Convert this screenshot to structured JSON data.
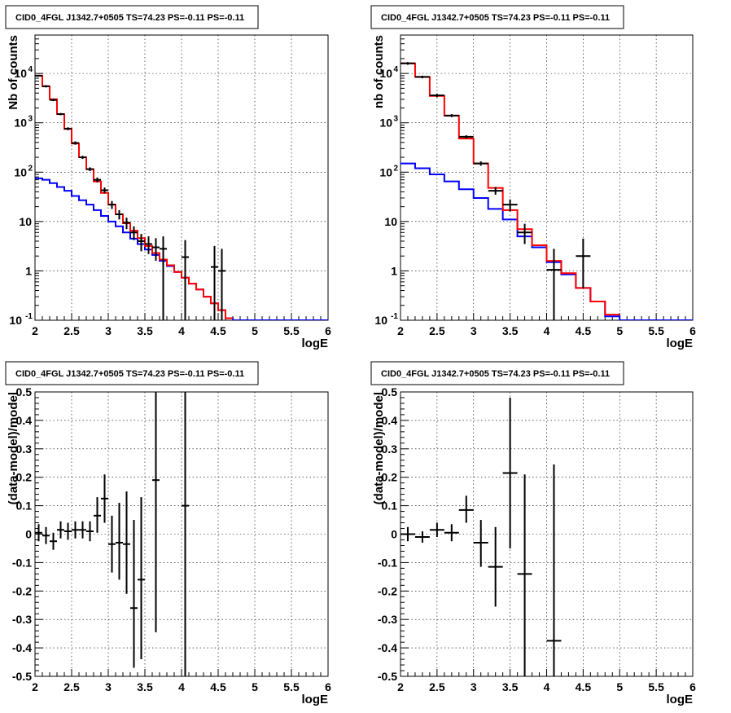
{
  "chart_data": [
    {
      "type": "line",
      "title": "CID0_4FGL J1342.7+0505 TS=74.23 PS=-0.11 PS=-0.11",
      "xlabel": "logE",
      "ylabel": "Nb of counts",
      "xlim": [
        2,
        6
      ],
      "ylim": [
        0.1,
        60000
      ],
      "yscale": "log",
      "grid": true,
      "xticks": [
        "2",
        "2.5",
        "3",
        "3.5",
        "4",
        "4.5",
        "5",
        "5.5",
        "6"
      ],
      "yticks": [
        {
          "v": 0.1,
          "label": "10",
          "sup": "-1"
        },
        {
          "v": 1,
          "label": "1",
          "sup": ""
        },
        {
          "v": 10,
          "label": "10",
          "sup": ""
        },
        {
          "v": 100,
          "label": "10",
          "sup": "2"
        },
        {
          "v": 1000,
          "label": "10",
          "sup": "3"
        },
        {
          "v": 10000,
          "label": "10",
          "sup": "4"
        }
      ],
      "step_width": 0.1,
      "series": [
        {
          "name": "",
          "color": "#0000ff",
          "style": "step",
          "x0": [
            2.0,
            2.1,
            2.2,
            2.3,
            2.4,
            2.5,
            2.6,
            2.7,
            2.8,
            2.9,
            3.0,
            3.1,
            3.2,
            3.3,
            3.4,
            3.5,
            3.6,
            3.7,
            3.8,
            3.9,
            4.0,
            4.1,
            4.2,
            4.3,
            4.4,
            4.5,
            4.6,
            4.7,
            4.8,
            4.9,
            5.0,
            5.1,
            5.2,
            5.3,
            5.4,
            5.5,
            5.6,
            5.7,
            5.8,
            5.9
          ],
          "values": [
            75,
            70,
            60,
            50,
            42,
            33,
            27,
            22,
            17,
            13,
            10,
            8,
            6,
            4.5,
            3.5,
            2.7,
            2.1,
            1.6,
            1.25,
            0.95,
            0.73,
            0.55,
            0.42,
            0.3,
            0.22,
            0.16,
            0.11,
            0.1,
            0.1,
            0.1,
            0.1,
            0.1,
            0.1,
            0.1,
            0.1,
            0.1,
            0.1,
            0.1,
            0.1,
            0.1
          ]
        },
        {
          "name": "",
          "color": "#ff0000",
          "style": "step",
          "x0": [
            2.0,
            2.1,
            2.2,
            2.3,
            2.4,
            2.5,
            2.6,
            2.7,
            2.8,
            2.9,
            3.0,
            3.1,
            3.2,
            3.3,
            3.4,
            3.5,
            3.6,
            3.7,
            3.8,
            3.9,
            4.0,
            4.1,
            4.2,
            4.3,
            4.4,
            4.5,
            4.6
          ],
          "values": [
            9000,
            5500,
            3000,
            1500,
            750,
            380,
            200,
            115,
            65,
            38,
            22,
            14,
            9.2,
            6.5,
            4.6,
            3.2,
            2.3,
            1.7,
            1.3,
            0.95,
            0.73,
            0.55,
            0.42,
            0.3,
            0.22,
            0.16,
            0.11
          ]
        }
      ],
      "points": {
        "color": "#000000",
        "x": [
          2.05,
          2.15,
          2.25,
          2.35,
          2.45,
          2.55,
          2.65,
          2.75,
          2.85,
          2.95,
          3.05,
          3.15,
          3.25,
          3.35,
          3.45,
          3.55,
          3.65,
          3.75,
          4.05,
          4.45,
          4.55
        ],
        "y": [
          9000,
          5500,
          2900,
          1500,
          760,
          390,
          200,
          115,
          70,
          43,
          22,
          14,
          9.5,
          6,
          4,
          3.5,
          3,
          2.8,
          1.9,
          1.2,
          1
        ],
        "ylow": [
          8600,
          5200,
          2750,
          1420,
          710,
          360,
          185,
          105,
          62,
          37,
          18,
          11,
          7,
          4.2,
          2.5,
          2.2,
          1.6,
          0.1,
          0.1,
          0.1,
          0.1
        ],
        "yhigh": [
          9400,
          5800,
          3050,
          1580,
          810,
          420,
          215,
          125,
          78,
          49,
          26,
          17,
          12,
          8,
          5.6,
          5,
          4.6,
          5,
          4.2,
          3.2,
          2.8
        ]
      }
    },
    {
      "type": "line",
      "title": "CID0_4FGL J1342.7+0505 TS=74.23 PS=-0.11 PS=-0.11",
      "xlabel": "logE",
      "ylabel": "nb of counts",
      "xlim": [
        2,
        6
      ],
      "ylim": [
        0.1,
        60000
      ],
      "yscale": "log",
      "grid": true,
      "xticks": [
        "2",
        "2.5",
        "3",
        "3.5",
        "4",
        "4.5",
        "5",
        "5.5",
        "6"
      ],
      "yticks": [
        {
          "v": 0.1,
          "label": "10",
          "sup": "-1"
        },
        {
          "v": 1,
          "label": "1",
          "sup": ""
        },
        {
          "v": 10,
          "label": "10",
          "sup": ""
        },
        {
          "v": 100,
          "label": "10",
          "sup": "2"
        },
        {
          "v": 1000,
          "label": "10",
          "sup": "3"
        },
        {
          "v": 10000,
          "label": "10",
          "sup": "4"
        }
      ],
      "step_width": 0.2,
      "series": [
        {
          "name": "",
          "color": "#0000ff",
          "style": "step",
          "x0": [
            2.0,
            2.2,
            2.4,
            2.6,
            2.8,
            3.0,
            3.2,
            3.4,
            3.6,
            3.8,
            4.0,
            4.2,
            4.4,
            4.6,
            4.8,
            5.0,
            5.2,
            5.4,
            5.6,
            5.8
          ],
          "values": [
            150,
            120,
            90,
            65,
            45,
            30,
            18,
            11,
            5,
            3,
            1.5,
            0.85,
            0.45,
            0.24,
            0.12,
            0.1,
            0.1,
            0.1,
            0.1,
            0.1
          ]
        },
        {
          "name": "",
          "color": "#ff0000",
          "style": "step",
          "x0": [
            2.0,
            2.2,
            2.4,
            2.6,
            2.8,
            3.0,
            3.2,
            3.4,
            3.6,
            3.8,
            4.0,
            4.2,
            4.4,
            4.6,
            4.8
          ],
          "values": [
            16000,
            8500,
            3500,
            1400,
            480,
            150,
            48,
            17,
            7,
            3.3,
            1.6,
            0.9,
            0.45,
            0.24,
            0.13
          ]
        }
      ],
      "points": {
        "color": "#000000",
        "x": [
          2.1,
          2.3,
          2.5,
          2.7,
          2.9,
          3.1,
          3.3,
          3.5,
          3.7,
          4.1,
          4.5
        ],
        "y": [
          16000,
          8500,
          3600,
          1400,
          520,
          150,
          42,
          22,
          6,
          1.05,
          2
        ],
        "ylow": [
          15000,
          8000,
          3300,
          1300,
          480,
          135,
          35,
          16,
          3.5,
          0.1,
          0.45
        ],
        "yhigh": [
          17000,
          9000,
          3900,
          1500,
          560,
          165,
          50,
          28,
          9,
          2.8,
          4.5
        ]
      }
    },
    {
      "type": "scatter",
      "title": "CID0_4FGL J1342.7+0505 TS=74.23 PS=-0.11 PS=-0.11",
      "xlabel": "logE",
      "ylabel": "(data-model)/model",
      "xlim": [
        2,
        6
      ],
      "ylim": [
        -0.5,
        0.5
      ],
      "yscale": "linear",
      "grid": true,
      "xticks": [
        "2",
        "2.5",
        "3",
        "3.5",
        "4",
        "4.5",
        "5",
        "5.5",
        "6"
      ],
      "yticks": [
        {
          "v": -0.5,
          "label": "-0.5",
          "sup": ""
        },
        {
          "v": -0.4,
          "label": "-0.4",
          "sup": ""
        },
        {
          "v": -0.3,
          "label": "-0.3",
          "sup": ""
        },
        {
          "v": -0.2,
          "label": "-0.2",
          "sup": ""
        },
        {
          "v": -0.1,
          "label": "-0.1",
          "sup": ""
        },
        {
          "v": 0,
          "label": "0",
          "sup": ""
        },
        {
          "v": 0.1,
          "label": "0.1",
          "sup": ""
        },
        {
          "v": 0.2,
          "label": "0.2",
          "sup": ""
        },
        {
          "v": 0.3,
          "label": "0.3",
          "sup": ""
        },
        {
          "v": 0.4,
          "label": "0.4",
          "sup": ""
        },
        {
          "v": 0.5,
          "label": "0.5",
          "sup": ""
        }
      ],
      "xerr": 0.05,
      "series": [],
      "points": {
        "color": "#000000",
        "x": [
          2.05,
          2.15,
          2.25,
          2.35,
          2.45,
          2.55,
          2.65,
          2.75,
          2.85,
          2.95,
          3.05,
          3.15,
          3.25,
          3.35,
          3.45,
          3.65,
          4.05
        ],
        "y": [
          0.005,
          -0.005,
          -0.025,
          0.015,
          0.01,
          0.015,
          0.015,
          0.01,
          0.065,
          0.125,
          -0.035,
          -0.03,
          -0.035,
          -0.26,
          -0.16,
          0.19,
          0.1
        ],
        "ylow": [
          -0.025,
          -0.035,
          -0.055,
          -0.015,
          -0.02,
          -0.015,
          -0.015,
          -0.025,
          0.005,
          0.04,
          -0.135,
          -0.16,
          -0.21,
          -0.47,
          -0.44,
          -0.345,
          -0.5
        ],
        "yhigh": [
          0.035,
          0.025,
          0.005,
          0.045,
          0.04,
          0.045,
          0.045,
          0.045,
          0.13,
          0.21,
          0.065,
          0.11,
          0.15,
          0.05,
          0.13,
          0.5,
          0.5
        ]
      }
    },
    {
      "type": "scatter",
      "title": "CID0_4FGL J1342.7+0505 TS=74.23 PS=-0.11 PS=-0.11",
      "xlabel": "logE",
      "ylabel": "(data-model)/model",
      "xlim": [
        2,
        6
      ],
      "ylim": [
        -0.5,
        0.5
      ],
      "yscale": "linear",
      "grid": true,
      "xticks": [
        "2",
        "2.5",
        "3",
        "3.5",
        "4",
        "4.5",
        "5",
        "5.5",
        "6"
      ],
      "yticks": [
        {
          "v": -0.5,
          "label": "-0.5",
          "sup": ""
        },
        {
          "v": -0.4,
          "label": "-0.4",
          "sup": ""
        },
        {
          "v": -0.3,
          "label": "-0.3",
          "sup": ""
        },
        {
          "v": -0.2,
          "label": "-0.2",
          "sup": ""
        },
        {
          "v": -0.1,
          "label": "-0.1",
          "sup": ""
        },
        {
          "v": 0,
          "label": "0",
          "sup": ""
        },
        {
          "v": 0.1,
          "label": "0.1",
          "sup": ""
        },
        {
          "v": 0.2,
          "label": "0.2",
          "sup": ""
        },
        {
          "v": 0.3,
          "label": "0.3",
          "sup": ""
        },
        {
          "v": 0.4,
          "label": "0.4",
          "sup": ""
        },
        {
          "v": 0.5,
          "label": "0.5",
          "sup": ""
        }
      ],
      "xerr": 0.1,
      "series": [],
      "points": {
        "color": "#000000",
        "x": [
          2.1,
          2.3,
          2.5,
          2.7,
          2.9,
          3.1,
          3.3,
          3.5,
          3.7,
          4.1
        ],
        "y": [
          0.0,
          -0.01,
          0.015,
          0.005,
          0.085,
          -0.03,
          -0.115,
          0.215,
          -0.14,
          -0.375
        ],
        "ylow": [
          -0.025,
          -0.03,
          -0.01,
          -0.025,
          0.04,
          -0.115,
          -0.255,
          -0.05,
          -0.5,
          -0.5
        ],
        "yhigh": [
          0.025,
          0.01,
          0.04,
          0.035,
          0.135,
          0.05,
          0.025,
          0.48,
          0.21,
          0.245
        ]
      }
    }
  ]
}
